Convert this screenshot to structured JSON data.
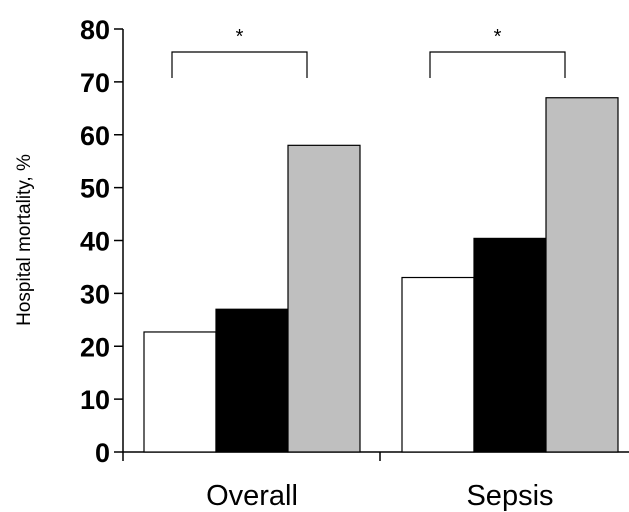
{
  "chart_data": {
    "type": "bar",
    "title": "",
    "xlabel": "",
    "ylabel": "Hospital mortality, %",
    "ylim": [
      0,
      80
    ],
    "yticks": [
      0,
      10,
      20,
      30,
      40,
      50,
      60,
      70,
      80
    ],
    "grid": false,
    "legend": "none",
    "categories": [
      "Overall",
      "Sepsis"
    ],
    "series": [
      {
        "color": "#ffffff",
        "values": [
          22.7,
          33.0
        ]
      },
      {
        "color": "#000000",
        "values": [
          27.0,
          40.4
        ]
      },
      {
        "color": "#bfbfbf",
        "values": [
          58.0,
          67.0
        ]
      }
    ],
    "significance": [
      {
        "category": "Overall",
        "from_series": 0,
        "to_series": 2,
        "label": "*"
      },
      {
        "category": "Sepsis",
        "from_series": 0,
        "to_series": 2,
        "label": "*"
      }
    ]
  }
}
